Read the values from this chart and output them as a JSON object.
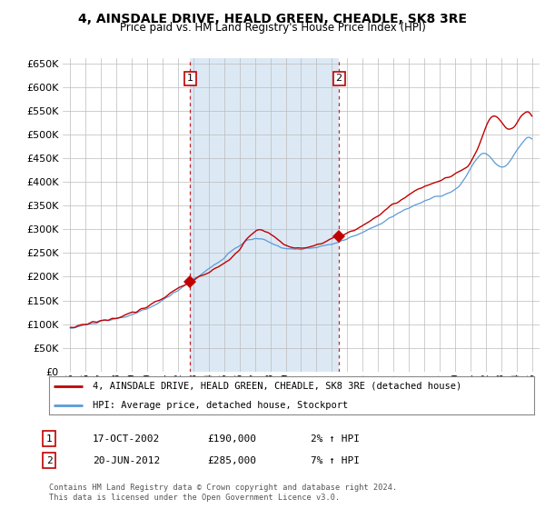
{
  "title": "4, AINSDALE DRIVE, HEALD GREEN, CHEADLE, SK8 3RE",
  "subtitle": "Price paid vs. HM Land Registry's House Price Index (HPI)",
  "sale1_date": "17-OCT-2002",
  "sale1_price": 190000,
  "sale1_hpi": "2% ↑ HPI",
  "sale1_label": "1",
  "sale1_year": 2002.79,
  "sale2_date": "20-JUN-2012",
  "sale2_price": 285000,
  "sale2_hpi": "7% ↑ HPI",
  "sale2_label": "2",
  "sale2_year": 2012.46,
  "legend_label1": "4, AINSDALE DRIVE, HEALD GREEN, CHEADLE, SK8 3RE (detached house)",
  "legend_label2": "HPI: Average price, detached house, Stockport",
  "footer": "Contains HM Land Registry data © Crown copyright and database right 2024.\nThis data is licensed under the Open Government Licence v3.0.",
  "hpi_color": "#5b9bd5",
  "price_color": "#c00000",
  "vline_color": "#c00000",
  "shade_color": "#dce9f5",
  "ylim_min": 0,
  "ylim_max": 660000,
  "ytick_step": 50000,
  "background_plot": "#f0f0f0",
  "background_fig": "#ffffff",
  "grid_color": "#cccccc",
  "xmin": 1995,
  "xmax": 2025
}
